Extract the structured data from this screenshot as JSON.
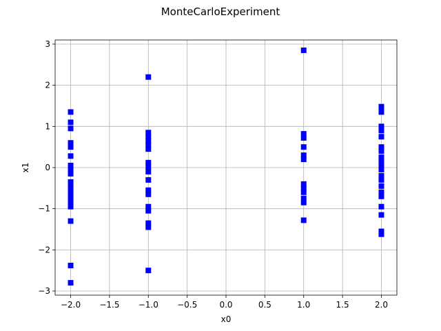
{
  "chart_data": {
    "type": "scatter",
    "title": "MonteCarloExperiment",
    "xlabel": "x0",
    "ylabel": "x1",
    "xlim": [
      -2.2,
      2.2
    ],
    "ylim": [
      -3.1,
      3.1
    ],
    "xticks": [
      -2.0,
      -1.5,
      -1.0,
      -0.5,
      0.0,
      0.5,
      1.0,
      1.5,
      2.0
    ],
    "xtick_labels": [
      "−2.0",
      "−1.5",
      "−1.0",
      "−0.5",
      "0.0",
      "0.5",
      "1.0",
      "1.5",
      "2.0"
    ],
    "yticks": [
      -3,
      -2,
      -1,
      0,
      1,
      2,
      3
    ],
    "ytick_labels": [
      "−3",
      "−2",
      "−1",
      "0",
      "1",
      "2",
      "3"
    ],
    "grid": true,
    "marker": "square",
    "color": "#0000ff",
    "series": [
      {
        "points": [
          [
            -2,
            1.35
          ],
          [
            -2,
            1.1
          ],
          [
            -2,
            0.95
          ],
          [
            -2,
            0.6
          ],
          [
            -2,
            0.5
          ],
          [
            -2,
            0.28
          ],
          [
            -2,
            0.05
          ],
          [
            -2,
            -0.05
          ],
          [
            -2,
            -0.15
          ],
          [
            -2,
            -0.35
          ],
          [
            -2,
            -0.45
          ],
          [
            -2,
            -0.55
          ],
          [
            -2,
            -0.65
          ],
          [
            -2,
            -0.75
          ],
          [
            -2,
            -0.85
          ],
          [
            -2,
            -0.95
          ],
          [
            -2,
            -1.3
          ],
          [
            -2,
            -2.38
          ],
          [
            -2,
            -2.8
          ],
          [
            -1,
            2.2
          ],
          [
            -1,
            0.85
          ],
          [
            -1,
            0.75
          ],
          [
            -1,
            0.65
          ],
          [
            -1,
            0.55
          ],
          [
            -1,
            0.45
          ],
          [
            -1,
            0.12
          ],
          [
            -1,
            0.02
          ],
          [
            -1,
            -0.1
          ],
          [
            -1,
            -0.3
          ],
          [
            -1,
            -0.55
          ],
          [
            -1,
            -0.65
          ],
          [
            -1,
            -0.95
          ],
          [
            -1,
            -1.05
          ],
          [
            -1,
            -1.35
          ],
          [
            -1,
            -1.45
          ],
          [
            -1,
            -2.5
          ],
          [
            1,
            2.85
          ],
          [
            1,
            0.82
          ],
          [
            1,
            0.72
          ],
          [
            1,
            0.5
          ],
          [
            1,
            0.3
          ],
          [
            1,
            0.2
          ],
          [
            1,
            -0.4
          ],
          [
            1,
            -0.5
          ],
          [
            1,
            -0.6
          ],
          [
            1,
            -0.75
          ],
          [
            1,
            -0.85
          ],
          [
            1,
            -1.28
          ],
          [
            2,
            1.48
          ],
          [
            2,
            1.35
          ],
          [
            2,
            1.0
          ],
          [
            2,
            0.9
          ],
          [
            2,
            0.75
          ],
          [
            2,
            0.5
          ],
          [
            2,
            0.4
          ],
          [
            2,
            0.25
          ],
          [
            2,
            0.15
          ],
          [
            2,
            0.05
          ],
          [
            2,
            -0.05
          ],
          [
            2,
            -0.2
          ],
          [
            2,
            -0.3
          ],
          [
            2,
            -0.45
          ],
          [
            2,
            -0.6
          ],
          [
            2,
            -0.7
          ],
          [
            2,
            -0.95
          ],
          [
            2,
            -1.15
          ],
          [
            2,
            -1.55
          ],
          [
            2,
            -1.62
          ]
        ]
      }
    ]
  }
}
